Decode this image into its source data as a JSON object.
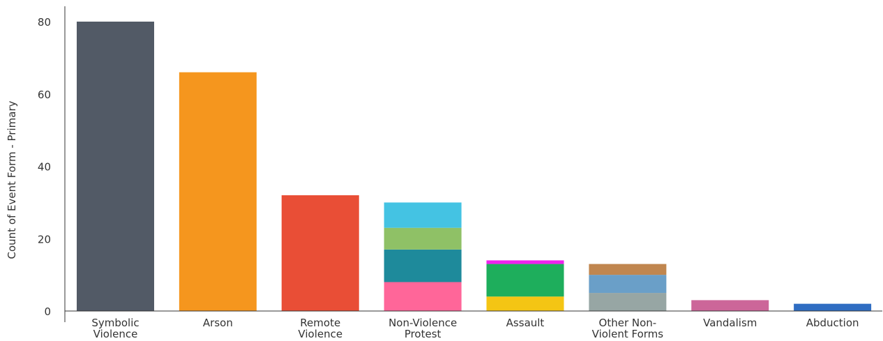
{
  "chart_data": {
    "type": "bar",
    "stacked": true,
    "title": "",
    "xlabel": "",
    "ylabel": "Count of Event Form - Primary",
    "ylim": [
      0,
      80
    ],
    "yticks": [
      0,
      20,
      40,
      60,
      80
    ],
    "grid": false,
    "legend": "none",
    "categories": [
      [
        "Symbolic",
        "Violence"
      ],
      [
        "Arson"
      ],
      [
        "Remote",
        "Violence"
      ],
      [
        "Non-Violence",
        "Protest"
      ],
      [
        "Assault"
      ],
      [
        "Other Non-",
        "Violent Forms"
      ],
      [
        "Vandalism"
      ],
      [
        "Abduction"
      ]
    ],
    "stacks": [
      [
        {
          "value": 80,
          "color": "#525a66"
        }
      ],
      [
        {
          "value": 66,
          "color": "#f5961e"
        }
      ],
      [
        {
          "value": 32,
          "color": "#e94e36"
        }
      ],
      [
        {
          "value": 8,
          "color": "#ff6699"
        },
        {
          "value": 9,
          "color": "#1e8a9b"
        },
        {
          "value": 6,
          "color": "#8fc166"
        },
        {
          "value": 7,
          "color": "#44c3e3"
        }
      ],
      [
        {
          "value": 4,
          "color": "#f4c514"
        },
        {
          "value": 9,
          "color": "#1eae5c"
        },
        {
          "value": 1,
          "color": "#ee22ee"
        }
      ],
      [
        {
          "value": 5,
          "color": "#97a6a4"
        },
        {
          "value": 5,
          "color": "#6a9fc8"
        },
        {
          "value": 3,
          "color": "#c0864f"
        }
      ],
      [
        {
          "value": 3,
          "color": "#cc6699"
        }
      ],
      [
        {
          "value": 2,
          "color": "#2f6dc2"
        }
      ]
    ]
  }
}
